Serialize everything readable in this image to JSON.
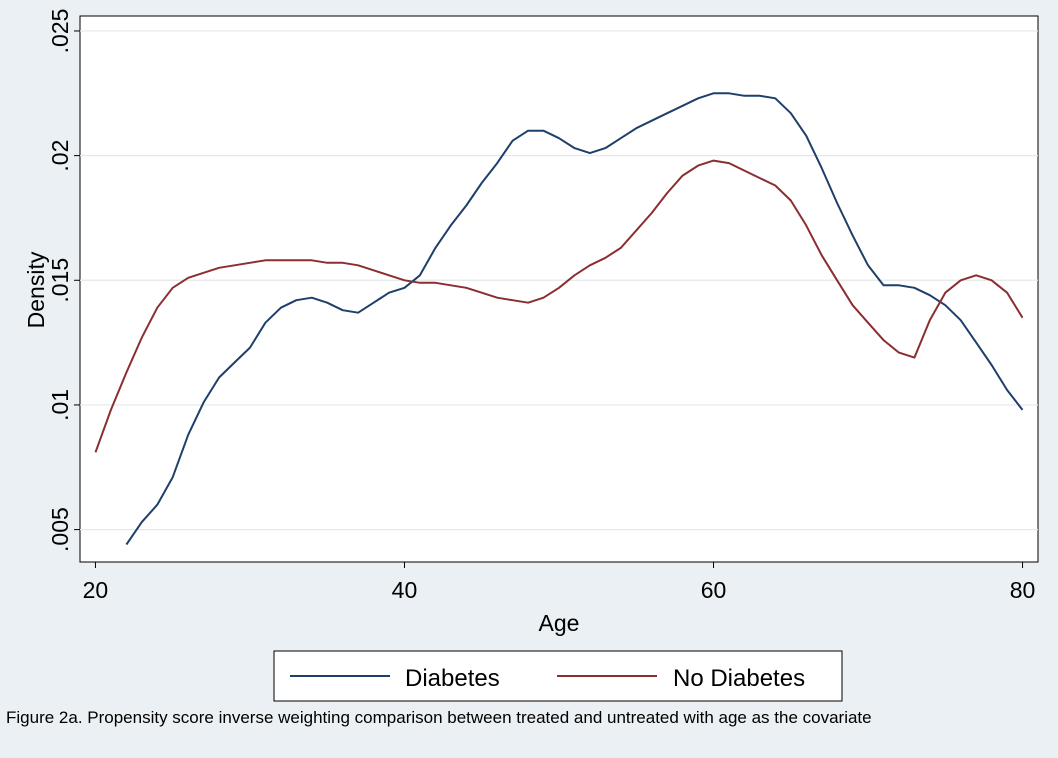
{
  "caption": "Figure 2a. Propensity score inverse weighting comparison between treated and untreated with age as the covariate",
  "chart_data": {
    "type": "line",
    "title": "",
    "xlabel": "Age",
    "ylabel": "Density",
    "xlim": [
      19,
      81
    ],
    "ylim": [
      0.0037,
      0.0256
    ],
    "xticks": [
      20,
      40,
      60,
      80
    ],
    "xtick_labels": [
      "20",
      "40",
      "60",
      "80"
    ],
    "yticks": [
      0.005,
      0.01,
      0.015,
      0.02,
      0.025
    ],
    "ytick_labels": [
      ".005",
      ".01",
      ".015",
      ".02",
      ".025"
    ],
    "grid": true,
    "legend": "bottom",
    "series": [
      {
        "name": "Diabetes",
        "color": "#1f3f6b",
        "x": [
          22,
          23,
          24,
          25,
          26,
          27,
          28,
          29,
          30,
          31,
          32,
          33,
          34,
          35,
          36,
          37,
          38,
          39,
          40,
          41,
          42,
          43,
          44,
          45,
          46,
          47,
          48,
          49,
          50,
          51,
          52,
          53,
          54,
          55,
          56,
          57,
          58,
          59,
          60,
          61,
          62,
          63,
          64,
          65,
          66,
          67,
          68,
          69,
          70,
          71,
          72,
          73,
          74,
          75,
          76,
          77,
          78,
          79,
          80
        ],
        "y": [
          0.0044,
          0.0053,
          0.006,
          0.0071,
          0.0088,
          0.0101,
          0.0111,
          0.0117,
          0.0123,
          0.0133,
          0.0139,
          0.0142,
          0.0143,
          0.0141,
          0.0138,
          0.0137,
          0.0141,
          0.0145,
          0.0147,
          0.0152,
          0.0163,
          0.0172,
          0.018,
          0.0189,
          0.0197,
          0.0206,
          0.021,
          0.021,
          0.0207,
          0.0203,
          0.0201,
          0.0203,
          0.0207,
          0.0211,
          0.0214,
          0.0217,
          0.022,
          0.0223,
          0.0225,
          0.0225,
          0.0224,
          0.0224,
          0.0223,
          0.0217,
          0.0208,
          0.0195,
          0.0181,
          0.0168,
          0.0156,
          0.0148,
          0.0148,
          0.0147,
          0.0144,
          0.014,
          0.0134,
          0.0125,
          0.0116,
          0.0106,
          0.0098
        ]
      },
      {
        "name": "No Diabetes",
        "color": "#8b2e32",
        "x": [
          20,
          21,
          22,
          23,
          24,
          25,
          26,
          27,
          28,
          29,
          30,
          31,
          32,
          33,
          34,
          35,
          36,
          37,
          38,
          39,
          40,
          41,
          42,
          43,
          44,
          45,
          46,
          47,
          48,
          49,
          50,
          51,
          52,
          53,
          54,
          55,
          56,
          57,
          58,
          59,
          60,
          61,
          62,
          63,
          64,
          65,
          66,
          67,
          68,
          69,
          70,
          71,
          72,
          73,
          74,
          75,
          76,
          77,
          78,
          79,
          80
        ],
        "y": [
          0.0081,
          0.0098,
          0.0113,
          0.0127,
          0.0139,
          0.0147,
          0.0151,
          0.0153,
          0.0155,
          0.0156,
          0.0157,
          0.0158,
          0.0158,
          0.0158,
          0.0158,
          0.0157,
          0.0157,
          0.0156,
          0.0154,
          0.0152,
          0.015,
          0.0149,
          0.0149,
          0.0148,
          0.0147,
          0.0145,
          0.0143,
          0.0142,
          0.0141,
          0.0143,
          0.0147,
          0.0152,
          0.0156,
          0.0159,
          0.0163,
          0.017,
          0.0177,
          0.0185,
          0.0192,
          0.0196,
          0.0198,
          0.0197,
          0.0194,
          0.0191,
          0.0188,
          0.0182,
          0.0172,
          0.016,
          0.015,
          0.014,
          0.0133,
          0.0126,
          0.0121,
          0.0119,
          0.0134,
          0.0145,
          0.015,
          0.0152,
          0.015,
          0.0145,
          0.0135
        ]
      }
    ]
  }
}
